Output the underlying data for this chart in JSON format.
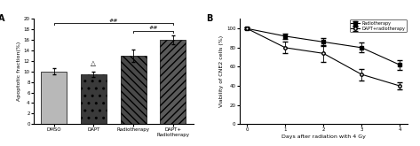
{
  "panel_a": {
    "categories": [
      "DMSO",
      "DAPT",
      "Radiotherapy",
      "DAPT+\nRadiotherapy"
    ],
    "values": [
      10.0,
      9.5,
      13.0,
      16.0
    ],
    "errors": [
      0.6,
      0.5,
      1.2,
      0.8
    ],
    "bar_colors": [
      "#b8b8b8",
      "#3a3a3a",
      "#4a4a4a",
      "#5a5a5a"
    ],
    "hatch": [
      "",
      "..",
      "\\\\\\\\",
      "////"
    ],
    "ylabel": "Apoptotic fraction(%)",
    "ylim": [
      0,
      20
    ],
    "yticks": [
      0,
      2,
      4,
      6,
      8,
      10,
      12,
      14,
      16,
      18,
      20
    ],
    "label": "A",
    "sig1_text": "##",
    "sig2_text": "##",
    "sig3_text": "△"
  },
  "panel_b": {
    "days": [
      0,
      1,
      2,
      3,
      4
    ],
    "radio_values": [
      100,
      92,
      86,
      80,
      62
    ],
    "radio_errors": [
      1,
      3,
      4,
      5,
      5
    ],
    "dapt_values": [
      100,
      80,
      74,
      52,
      40
    ],
    "dapt_errors": [
      1,
      6,
      9,
      6,
      4
    ],
    "xlabel": "Days after radiation with 4 Gy",
    "ylabel": "Viability of CNE2 cells (%)",
    "ylim": [
      0,
      110
    ],
    "yticks": [
      0,
      20,
      40,
      60,
      80,
      100
    ],
    "label": "B",
    "legend": [
      "Radiotherapy",
      "DAPT+radiotherapy"
    ]
  }
}
